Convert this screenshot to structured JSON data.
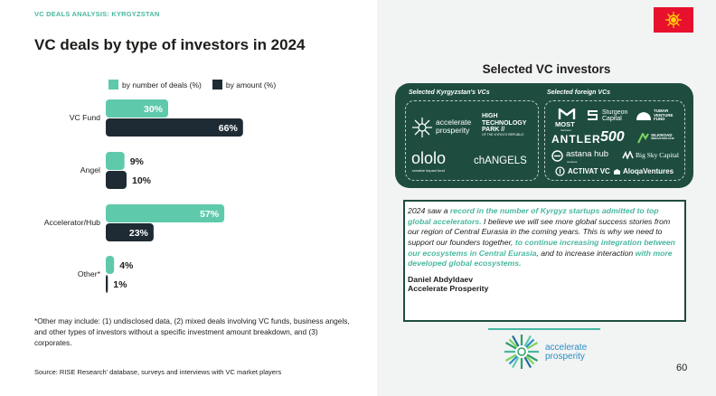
{
  "kicker": "VC DEALS ANALYSIS: KYRGYZSTAN",
  "title": "VC deals by type of investors in 2024",
  "colors": {
    "teal": "#5fc9ac",
    "dark": "#1f2b34",
    "accent_text": "#49b8a0",
    "panel_green": "#1e4d40",
    "flag_red": "#e8112d",
    "flag_sun": "#ffd200"
  },
  "chart_data": {
    "type": "bar",
    "orientation": "horizontal",
    "categories": [
      "VC Fund",
      "Angel",
      "Accelerator/Hub",
      "Other*"
    ],
    "series": [
      {
        "name": "by number of deals (%)",
        "values": [
          30,
          9,
          57,
          4
        ],
        "color": "#5fc9ac"
      },
      {
        "name": "by amount (%)",
        "values": [
          66,
          10,
          23,
          1
        ],
        "color": "#1f2b34"
      }
    ],
    "data_labels": [
      [
        "30%",
        "9%",
        "57%",
        "4%"
      ],
      [
        "66%",
        "10%",
        "23%",
        "1%"
      ]
    ],
    "value_unit": "%",
    "legend": "top",
    "grid": false
  },
  "footnote": "*Other may include: (1) undisclosed data, (2) mixed deals involving VC funds, business angels, and other types of investors without a specific investment amount breakdown, and (3) corporates.",
  "source": "Source: RISE Research' database, surveys and interviews with VC market players",
  "selected": {
    "title": "Selected VC investors",
    "kg_heading": "Selected Kyrgyzstan's VCs",
    "foreign_heading": "Selected foreign VCs",
    "kg_logos": {
      "accelerate_line1": "accelerate",
      "accelerate_line2": "prosperity",
      "htp_line1": "HIGH",
      "htp_line2": "TECHNOLOGY",
      "htp_line3": "PARK //",
      "htp_line4": "OF THE KYRGYZ REPUBLIC",
      "ololo": "ololo",
      "ololo_sub": "creative impact fund",
      "changels": "chANGELS"
    },
    "foreign_logos": {
      "most": "MOST",
      "most_sub": "Ventures",
      "sturgeon_line1": "Sturgeon",
      "sturgeon_line2": "Capital",
      "tumar_line1": "TUMAR",
      "tumar_line2": "VENTURE",
      "tumar_line3": "FUND",
      "antler": "ANTLER",
      "five_hundred": "500",
      "silkroad_line1": "SILKROAD",
      "silkroad_line2": "INNOVATION HUB",
      "astana": "astana hub",
      "astana_sub": "ventures",
      "bigsky": "Big Sky Capital",
      "activat": "ACTIVAT VC",
      "aloqa": "AloqaVentures"
    }
  },
  "quote": {
    "p1": "2024 saw a ",
    "h1": "record in the number of Kyrgyz startups admitted to top global accelerators.",
    "p2": " I believe we will see more global success stories from our region of Central Eurasia in the coming years. This is why we need to support our founders together, ",
    "h2": "to continue increasing integration between our ecosystems in Central Eurasia",
    "p3": ", and to increase interaction ",
    "h3": "with more developed global ecosystems.",
    "author": "Daniel Abdyldaev",
    "org": "Accelerate Prosperity"
  },
  "brand": {
    "line1": "accelerate",
    "line2": "prosperity"
  },
  "icons": [
    "kyrgyzstan-flag-icon",
    "accelerate-prosperity-logo-icon",
    "most-logo-icon",
    "sturgeon-logo-icon",
    "tumar-logo-icon"
  ],
  "page_number": "60"
}
